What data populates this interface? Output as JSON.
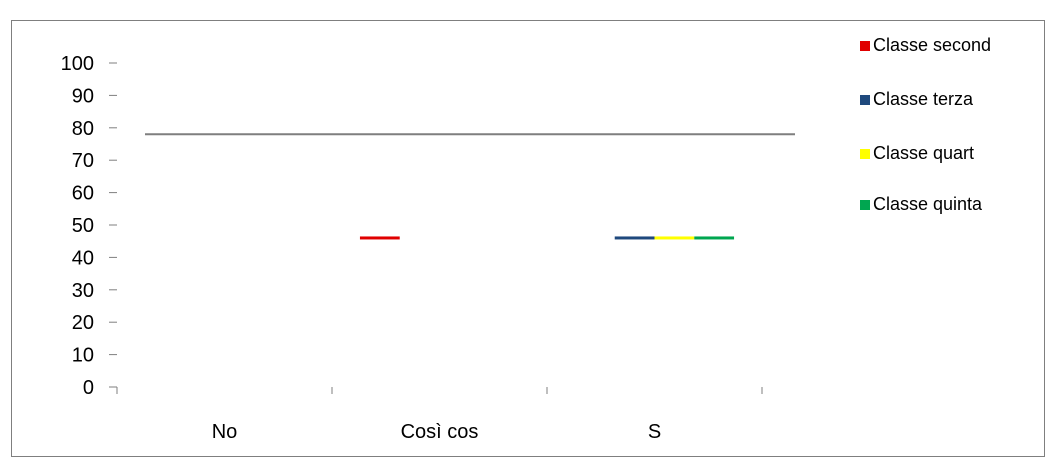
{
  "chart_data": {
    "type": "bar",
    "categories": [
      "No",
      "Così cos",
      "S"
    ],
    "series": [
      {
        "name": "Classe second",
        "values": [
          0,
          46,
          0
        ],
        "color": "#e00000"
      },
      {
        "name": "Classe terza",
        "values": [
          0,
          0,
          46
        ],
        "color": "#1f497d"
      },
      {
        "name": "Classe quart",
        "values": [
          0,
          0,
          46
        ],
        "color": "#ffff00"
      },
      {
        "name": "Classe quinta",
        "values": [
          0,
          0,
          46
        ],
        "color": "#00a650"
      }
    ],
    "yticks": [
      "100",
      "90",
      "80",
      "70",
      "60",
      "50",
      "40",
      "30",
      "20",
      "10",
      "0"
    ],
    "ylim": [
      0,
      100
    ],
    "grid": false,
    "reference_line": 78,
    "reference_line_color": "#7f7f7f",
    "legend_position": "right"
  }
}
